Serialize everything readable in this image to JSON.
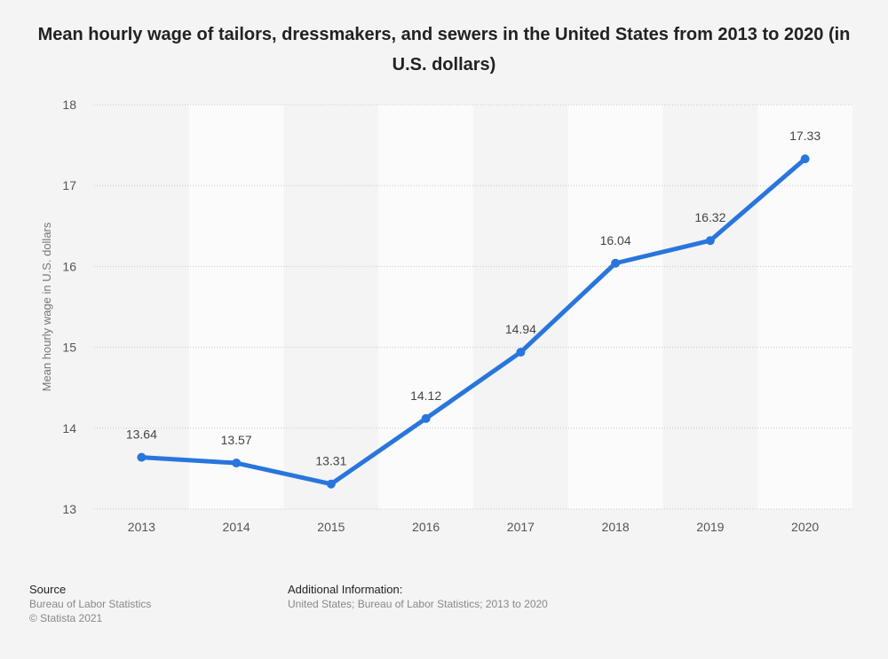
{
  "chart_data": {
    "type": "line",
    "title": "Mean hourly wage of tailors, dressmakers, and sewers in the United States from 2013 to 2020 (in U.S. dollars)",
    "categories": [
      "2013",
      "2014",
      "2015",
      "2016",
      "2017",
      "2018",
      "2019",
      "2020"
    ],
    "values": [
      13.64,
      13.57,
      13.31,
      14.12,
      14.94,
      16.04,
      16.32,
      17.33
    ],
    "data_labels": [
      "13.64",
      "13.57",
      "13.31",
      "14.12",
      "14.94",
      "16.04",
      "16.32",
      "17.33"
    ],
    "xlabel": "",
    "ylabel": "Mean hourly wage in U.S. dollars",
    "ylim": [
      13,
      18
    ],
    "yticks": [
      13,
      14,
      15,
      16,
      17,
      18
    ],
    "grid": true,
    "line_color": "#2876dd"
  },
  "footer": {
    "source_heading": "Source",
    "source_lines": [
      "Bureau of Labor Statistics",
      "© Statista 2021"
    ],
    "additional_heading": "Additional Information:",
    "additional_text": "United States; Bureau of Labor Statistics; 2013 to 2020"
  }
}
